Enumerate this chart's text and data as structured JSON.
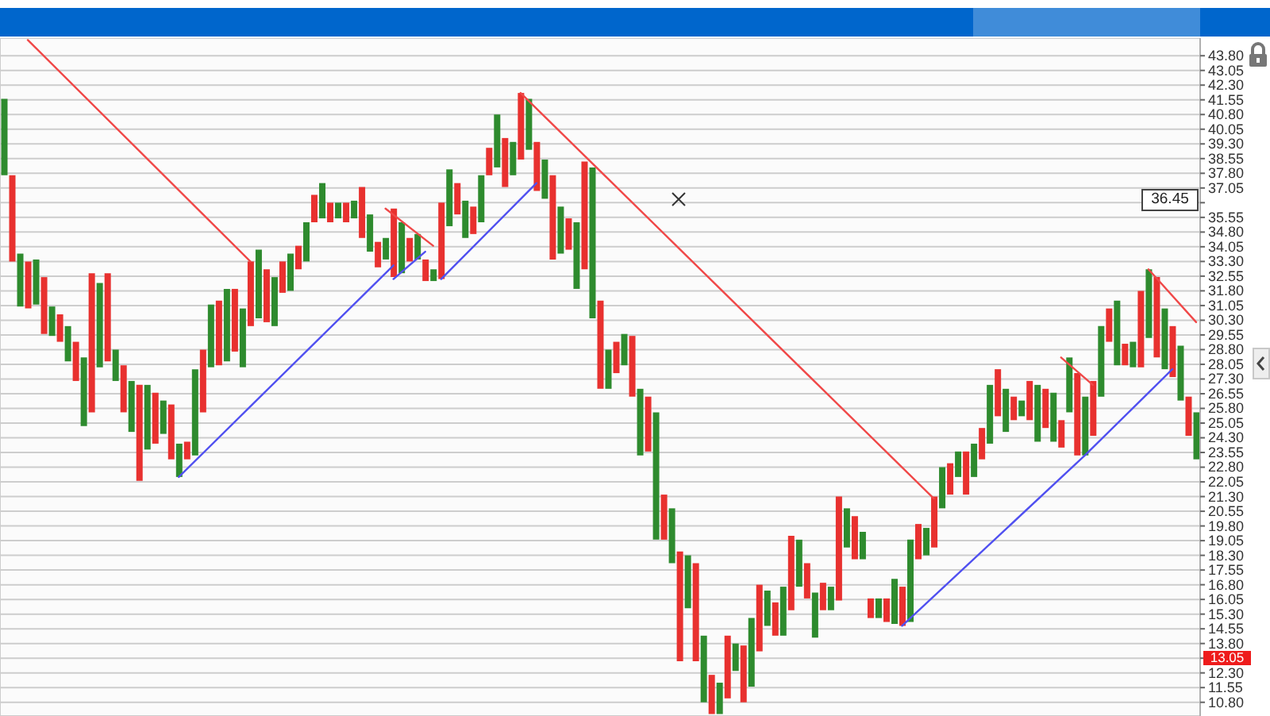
{
  "chart_data": {
    "type": "bar",
    "categories": [
      null,
      null,
      null,
      null,
      null,
      null,
      null,
      null,
      null,
      null,
      null,
      null,
      null,
      null,
      null,
      null,
      null,
      null,
      null,
      null,
      null,
      null,
      null,
      null,
      null,
      null,
      null,
      null,
      null,
      null,
      null,
      null,
      null,
      null,
      null,
      null,
      null,
      null,
      null,
      null,
      null,
      null,
      null,
      null,
      null,
      null,
      null,
      null,
      null,
      null,
      null,
      null,
      null,
      null,
      null,
      null,
      null,
      null,
      null,
      null,
      null,
      null,
      null,
      null,
      null,
      null,
      null,
      null,
      null,
      null,
      null,
      null,
      null,
      null,
      null,
      null,
      null,
      null,
      null,
      null,
      null,
      null,
      null,
      null,
      null,
      null,
      null,
      null,
      null,
      null,
      null,
      null,
      null,
      null,
      null,
      null,
      null,
      null,
      null,
      null,
      null,
      null,
      null,
      null,
      null,
      null,
      null,
      null,
      null,
      null,
      null,
      null,
      null,
      null,
      null,
      null,
      null,
      null,
      null,
      null,
      null,
      null,
      null,
      null,
      null,
      null,
      null,
      null,
      null,
      null,
      null,
      null,
      null,
      null,
      null,
      null,
      null,
      null,
      null,
      null,
      null,
      null,
      null,
      null,
      null,
      null,
      null,
      null,
      null,
      null,
      null
    ],
    "series": [
      {
        "color": "#2e8b2e",
        "base": [
          37.7,
          33.3,
          31.0,
          30.9,
          31.1,
          29.6,
          29.5,
          29.2,
          28.2,
          27.2,
          24.9,
          25.6,
          27.9,
          28.2,
          27.2,
          25.6,
          24.6,
          22.1,
          23.7,
          24.0,
          24.5,
          23.2,
          22.3,
          23.2,
          23.4,
          25.6,
          27.9,
          28.0,
          28.2,
          28.7,
          27.9,
          30.0,
          30.4,
          30.2,
          30.0,
          31.7,
          31.8,
          32.9,
          33.3,
          35.3,
          35.5,
          35.3,
          35.5,
          35.3,
          35.5,
          34.5,
          33.8,
          33.0,
          33.4,
          32.5,
          32.7,
          33.3,
          33.4,
          32.3,
          32.3,
          32.4,
          35.1,
          35.7,
          34.5,
          34.7,
          35.3,
          37.7,
          38.1,
          37.1,
          37.7,
          38.5,
          39.0,
          36.9,
          36.5,
          33.4,
          33.7,
          33.9,
          31.9,
          32.9,
          30.4,
          26.8,
          26.8,
          27.6,
          28.0,
          26.4,
          23.4,
          23.6,
          19.1,
          19.1,
          17.9,
          12.9,
          15.6,
          12.9,
          10.8,
          10.2,
          10.2,
          11.0,
          12.4,
          10.8,
          11.6,
          13.4,
          14.7,
          14.2,
          14.2,
          15.5,
          16.7,
          16.1,
          14.1,
          15.5,
          15.5,
          16.0,
          18.7,
          18.1,
          18.1,
          15.1,
          15.1,
          14.9,
          14.8,
          14.7,
          14.9,
          18.1,
          18.3,
          18.7,
          20.7,
          21.4,
          22.3,
          21.4,
          22.3,
          23.2,
          24.0,
          25.4,
          24.6,
          25.2,
          25.4,
          25.2,
          24.1,
          24.8,
          24.1,
          23.8,
          25.6,
          23.4,
          23.4,
          24.4,
          26.4,
          29.2,
          28.0,
          28.0,
          27.9,
          27.9,
          29.4,
          28.4,
          27.8,
          27.4,
          26.2,
          24.4,
          23.2
        ],
        "values": [
          3.9,
          4.4,
          2.7,
          2.4,
          2.3,
          2.9,
          1.5,
          1.4,
          1.8,
          2.0,
          3.5,
          7.1,
          4.3,
          4.5,
          1.6,
          2.4,
          2.6,
          4.9,
          3.3,
          2.6,
          1.7,
          2.8,
          1.7,
          0.9,
          4.4,
          3.2,
          3.2,
          3.3,
          3.7,
          3.2,
          3.0,
          3.3,
          3.5,
          2.7,
          2.5,
          1.6,
          1.9,
          1.2,
          2.0,
          1.4,
          1.8,
          1.0,
          0.8,
          1.0,
          0.9,
          2.6,
          1.9,
          1.3,
          1.1,
          3.5,
          2.6,
          1.2,
          1.3,
          1.1,
          0.6,
          3.9,
          2.9,
          1.6,
          1.9,
          1.4,
          2.4,
          1.4,
          2.7,
          2.5,
          1.7,
          3.4,
          2.6,
          2.5,
          2.0,
          4.3,
          2.4,
          1.6,
          3.4,
          5.5,
          7.7,
          4.5,
          2.0,
          1.6,
          1.6,
          3.1,
          3.4,
          2.8,
          6.5,
          2.3,
          2.8,
          5.6,
          2.7,
          5.0,
          3.4,
          2.0,
          1.6,
          3.2,
          1.4,
          2.9,
          3.5,
          3.4,
          1.8,
          1.7,
          2.5,
          3.8,
          2.4,
          1.8,
          2.3,
          1.4,
          1.2,
          5.3,
          2.0,
          2.2,
          1.4,
          1.0,
          1.0,
          1.2,
          2.3,
          2.0,
          4.2,
          1.8,
          1.4,
          2.6,
          2.1,
          1.6,
          1.3,
          2.2,
          1.7,
          1.6,
          3.0,
          2.4,
          2.2,
          1.2,
          0.8,
          2.0,
          2.9,
          2.0,
          2.5,
          1.4,
          2.8,
          4.2,
          3.0,
          2.8,
          3.6,
          1.7,
          3.3,
          1.1,
          1.3,
          3.9,
          3.5,
          4.1,
          3.1,
          2.6,
          2.8,
          2.0,
          2.4
        ],
        "colors": [
          "#2e8b2e",
          "#e8312f",
          "#2e8b2e",
          "#e8312f",
          "#2e8b2e",
          "#e8312f",
          "#2e8b2e",
          "#e8312f",
          "#2e8b2e",
          "#e8312f",
          "#2e8b2e",
          "#e8312f",
          "#2e8b2e",
          "#e8312f",
          "#2e8b2e",
          "#e8312f",
          "#2e8b2e",
          "#e8312f",
          "#2e8b2e",
          "#e8312f",
          "#2e8b2e",
          "#e8312f",
          "#2e8b2e",
          "#e8312f",
          "#2e8b2e",
          "#e8312f",
          "#2e8b2e",
          "#e8312f",
          "#2e8b2e",
          "#e8312f",
          "#2e8b2e",
          "#e8312f",
          "#2e8b2e",
          "#e8312f",
          "#2e8b2e",
          "#e8312f",
          "#2e8b2e",
          "#e8312f",
          "#2e8b2e",
          "#e8312f",
          "#2e8b2e",
          "#e8312f",
          "#2e8b2e",
          "#e8312f",
          "#2e8b2e",
          "#e8312f",
          "#2e8b2e",
          "#e8312f",
          "#2e8b2e",
          "#e8312f",
          "#2e8b2e",
          "#e8312f",
          "#2e8b2e",
          "#e8312f",
          "#2e8b2e",
          "#e8312f",
          "#2e8b2e",
          "#e8312f",
          "#2e8b2e",
          "#e8312f",
          "#2e8b2e",
          "#e8312f",
          "#2e8b2e",
          "#e8312f",
          "#2e8b2e",
          "#e8312f",
          "#2e8b2e",
          "#e8312f",
          "#2e8b2e",
          "#e8312f",
          "#2e8b2e",
          "#e8312f",
          "#2e8b2e",
          "#e8312f",
          "#2e8b2e",
          "#e8312f",
          "#2e8b2e",
          "#e8312f",
          "#2e8b2e",
          "#e8312f",
          "#2e8b2e",
          "#e8312f",
          "#2e8b2e",
          "#e8312f",
          "#2e8b2e",
          "#e8312f",
          "#2e8b2e",
          "#e8312f",
          "#2e8b2e",
          "#e8312f",
          "#2e8b2e",
          "#e8312f",
          "#2e8b2e",
          "#e8312f",
          "#2e8b2e",
          "#e8312f",
          "#2e8b2e",
          "#e8312f",
          "#2e8b2e",
          "#e8312f",
          "#2e8b2e",
          "#e8312f",
          "#2e8b2e",
          "#e8312f",
          "#2e8b2e",
          "#e8312f",
          "#2e8b2e",
          "#e8312f",
          "#2e8b2e",
          "#e8312f",
          "#2e8b2e",
          "#e8312f",
          "#2e8b2e",
          "#e8312f",
          "#2e8b2e",
          "#e8312f",
          "#2e8b2e",
          "#e8312f",
          "#2e8b2e",
          "#e8312f",
          "#2e8b2e",
          "#e8312f",
          "#2e8b2e",
          "#e8312f",
          "#2e8b2e",
          "#e8312f",
          "#2e8b2e",
          "#e8312f",
          "#2e8b2e",
          "#e8312f",
          "#2e8b2e",
          "#e8312f",
          "#2e8b2e",
          "#e8312f",
          "#2e8b2e",
          "#e8312f",
          "#2e8b2e",
          "#e8312f",
          "#2e8b2e",
          "#e8312f",
          "#2e8b2e",
          "#e8312f",
          "#2e8b2e",
          "#e8312f",
          "#2e8b2e",
          "#e8312f",
          "#2e8b2e",
          "#e8312f",
          "#2e8b2e",
          "#e8312f",
          "#2e8b2e"
        ]
      },
      {
        "type": "line",
        "color": "#f04848",
        "values": [
          null,
          null,
          null,
          44.6,
          null,
          null,
          null,
          null,
          null,
          null,
          null,
          null,
          null,
          null,
          null,
          null,
          null,
          null,
          null,
          null,
          null,
          null,
          null,
          null,
          null,
          null,
          null,
          null,
          null,
          null,
          null,
          33.3,
          null,
          null,
          null,
          null,
          null,
          null,
          null,
          null,
          null,
          null,
          null,
          null,
          null,
          null,
          null,
          null,
          null,
          null,
          null,
          null,
          null,
          null,
          null,
          null,
          null,
          null,
          null,
          null,
          null,
          null,
          null,
          null,
          null,
          null,
          null,
          null,
          null,
          null,
          null,
          null,
          null,
          null,
          null,
          null,
          null,
          null,
          null,
          null,
          null,
          null,
          null,
          null,
          null,
          null,
          null,
          null,
          null,
          null,
          null,
          null,
          null,
          null,
          null,
          null,
          null,
          null,
          null,
          null,
          null,
          null,
          null,
          null,
          null,
          null,
          null,
          null,
          null,
          null,
          null,
          null,
          null,
          null,
          null,
          null,
          null,
          null,
          null,
          null,
          null,
          null,
          null,
          null,
          null,
          null,
          null,
          null,
          null,
          null,
          null,
          null,
          null,
          null,
          null,
          null,
          null,
          null,
          null,
          null,
          null,
          null,
          null,
          null,
          null,
          null,
          null,
          null,
          null,
          null,
          null
        ]
      },
      {
        "type": "line",
        "color": "#5050f0",
        "values": [
          null,
          null,
          null,
          null,
          null,
          null,
          null,
          null,
          null,
          null,
          null,
          null,
          null,
          null,
          null,
          null,
          null,
          null,
          null,
          null,
          null,
          null,
          22.3,
          null,
          null,
          null,
          null,
          null,
          null,
          null,
          null,
          null,
          null,
          null,
          null,
          null,
          null,
          null,
          null,
          null,
          null,
          null,
          null,
          null,
          null,
          null,
          null,
          null,
          null,
          33.1,
          null,
          null,
          null,
          null,
          null,
          null,
          null,
          null,
          null,
          null,
          null,
          null,
          null,
          null,
          null,
          null,
          null,
          null,
          null,
          null,
          null,
          null,
          null,
          null,
          null,
          null,
          null,
          null,
          null,
          null,
          null,
          null,
          null,
          null,
          null,
          null,
          null,
          null,
          null,
          null,
          null,
          null,
          null,
          null,
          null,
          null,
          null,
          null,
          null,
          null,
          null,
          null,
          null,
          null,
          null,
          null,
          null,
          null,
          null,
          null,
          null,
          null,
          null,
          null,
          null,
          null,
          null,
          null,
          null,
          null,
          null,
          null,
          null,
          null,
          null,
          null,
          null,
          null,
          null,
          null,
          null,
          null,
          null,
          null,
          null,
          null,
          null,
          null,
          null,
          null,
          null,
          null,
          null,
          null,
          null,
          null,
          null,
          null,
          null,
          null,
          null
        ]
      },
      {
        "type": "line",
        "color": "#f04848",
        "values": [
          null,
          null,
          null,
          null,
          null,
          null,
          null,
          null,
          null,
          null,
          null,
          null,
          null,
          null,
          null,
          null,
          null,
          null,
          null,
          null,
          null,
          null,
          null,
          null,
          null,
          null,
          null,
          null,
          null,
          null,
          null,
          null,
          null,
          null,
          null,
          null,
          null,
          null,
          null,
          null,
          null,
          null,
          null,
          null,
          null,
          null,
          null,
          null,
          36.0,
          null,
          null,
          null,
          null,
          null,
          34.1,
          null,
          null,
          null,
          null,
          null,
          null,
          null,
          null,
          null,
          null,
          null,
          null,
          null,
          null,
          null,
          null,
          null,
          null,
          null,
          null,
          null,
          null,
          null,
          null,
          null,
          null,
          null,
          null,
          null,
          null,
          null,
          null,
          null,
          null,
          null,
          null,
          null,
          null,
          null,
          null,
          null,
          null,
          null,
          null,
          null,
          null,
          null,
          null,
          null,
          null,
          null,
          null,
          null,
          null,
          null,
          null,
          null,
          null,
          null,
          null,
          null,
          null,
          null,
          null,
          null,
          null,
          null,
          null,
          null,
          null,
          null,
          null,
          null,
          null,
          null,
          null,
          null,
          null,
          null,
          null,
          null,
          null,
          null,
          null,
          null,
          null,
          null,
          null,
          null,
          null,
          null,
          null,
          null,
          null,
          null,
          null
        ]
      },
      {
        "type": "line",
        "color": "#5050f0",
        "values": [
          null,
          null,
          null,
          null,
          null,
          null,
          null,
          null,
          null,
          null,
          null,
          null,
          null,
          null,
          null,
          null,
          null,
          null,
          null,
          null,
          null,
          null,
          null,
          null,
          null,
          null,
          null,
          null,
          null,
          null,
          null,
          null,
          null,
          null,
          null,
          null,
          null,
          null,
          null,
          null,
          null,
          null,
          null,
          null,
          null,
          null,
          null,
          null,
          null,
          32.4,
          null,
          null,
          null,
          33.8,
          null,
          null,
          null,
          null,
          null,
          null,
          null,
          null,
          null,
          null,
          null,
          null,
          null,
          null,
          null,
          null,
          null,
          null,
          null,
          null,
          null,
          null,
          null,
          null,
          null,
          null,
          null,
          null,
          null,
          null,
          null,
          null,
          null,
          null,
          null,
          null,
          null,
          null,
          null,
          null,
          null,
          null,
          null,
          null,
          null,
          null,
          null,
          null,
          null,
          null,
          null,
          null,
          null,
          null,
          null,
          null,
          null,
          null,
          null,
          null,
          null,
          null,
          null,
          null,
          null,
          null,
          null,
          null,
          null,
          null,
          null,
          null,
          null,
          null,
          null,
          null,
          null,
          null,
          null,
          null,
          null,
          null,
          null,
          null,
          null,
          null,
          null,
          null,
          null,
          null,
          null,
          null,
          null,
          null,
          null,
          null,
          null
        ]
      },
      {
        "type": "line",
        "color": "#5050f0",
        "values": [
          null,
          null,
          null,
          null,
          null,
          null,
          null,
          null,
          null,
          null,
          null,
          null,
          null,
          null,
          null,
          null,
          null,
          null,
          null,
          null,
          null,
          null,
          null,
          null,
          null,
          null,
          null,
          null,
          null,
          null,
          null,
          null,
          null,
          null,
          null,
          null,
          null,
          null,
          null,
          null,
          null,
          null,
          null,
          null,
          null,
          null,
          null,
          null,
          null,
          null,
          null,
          null,
          null,
          null,
          null,
          32.4,
          null,
          null,
          null,
          null,
          null,
          null,
          null,
          null,
          null,
          null,
          null,
          37.3,
          null,
          null,
          null,
          null,
          null,
          null,
          null,
          null,
          null,
          null,
          null,
          null,
          null,
          null,
          null,
          null,
          null,
          null,
          null,
          null,
          null,
          null,
          null,
          null,
          null,
          null,
          null,
          null,
          null,
          null,
          null,
          null,
          null,
          null,
          null,
          null,
          null,
          null,
          null,
          null,
          null,
          null,
          null,
          null,
          null,
          null,
          null,
          null,
          null,
          null,
          null,
          null,
          null,
          null,
          null,
          null,
          null,
          null,
          null,
          null,
          null,
          null,
          null,
          null,
          null,
          null,
          null,
          null,
          null,
          null,
          null,
          null,
          null,
          null,
          null,
          null,
          null,
          null,
          null,
          null,
          null,
          null,
          null
        ]
      },
      {
        "type": "line",
        "color": "#f04848",
        "values": [
          null,
          null,
          null,
          null,
          null,
          null,
          null,
          null,
          null,
          null,
          null,
          null,
          null,
          null,
          null,
          null,
          null,
          null,
          null,
          null,
          null,
          null,
          null,
          null,
          null,
          null,
          null,
          null,
          null,
          null,
          null,
          null,
          null,
          null,
          null,
          null,
          null,
          null,
          null,
          null,
          null,
          null,
          null,
          null,
          null,
          null,
          null,
          null,
          null,
          null,
          null,
          null,
          null,
          null,
          null,
          null,
          null,
          null,
          null,
          null,
          null,
          null,
          null,
          null,
          null,
          41.9,
          null,
          null,
          null,
          null,
          null,
          null,
          null,
          null,
          null,
          null,
          null,
          null,
          null,
          null,
          null,
          null,
          null,
          null,
          null,
          null,
          null,
          null,
          null,
          null,
          null,
          null,
          null,
          null,
          null,
          null,
          null,
          null,
          null,
          null,
          null,
          null,
          null,
          null,
          null,
          null,
          null,
          null,
          null,
          null,
          null,
          null,
          null,
          null,
          null,
          null,
          null,
          21.2,
          null,
          null,
          null,
          null,
          null,
          null,
          null,
          null,
          null,
          null,
          null,
          null,
          null,
          null,
          null,
          null,
          null,
          null,
          null,
          null,
          null,
          null,
          null,
          null,
          null,
          null,
          null,
          null,
          null,
          null,
          null,
          null,
          null
        ]
      },
      {
        "type": "line",
        "color": "#5050f0",
        "values": [
          null,
          null,
          null,
          null,
          null,
          null,
          null,
          null,
          null,
          null,
          null,
          null,
          null,
          null,
          null,
          null,
          null,
          null,
          null,
          null,
          null,
          null,
          null,
          null,
          null,
          null,
          null,
          null,
          null,
          null,
          null,
          null,
          null,
          null,
          null,
          null,
          null,
          null,
          null,
          null,
          null,
          null,
          null,
          null,
          null,
          null,
          null,
          null,
          null,
          null,
          null,
          null,
          null,
          null,
          null,
          null,
          null,
          null,
          null,
          null,
          null,
          null,
          null,
          null,
          null,
          null,
          null,
          null,
          null,
          null,
          null,
          null,
          null,
          null,
          null,
          null,
          null,
          null,
          null,
          null,
          null,
          null,
          null,
          null,
          null,
          null,
          null,
          null,
          null,
          null,
          null,
          null,
          null,
          null,
          null,
          null,
          null,
          null,
          null,
          null,
          null,
          null,
          null,
          null,
          null,
          null,
          null,
          null,
          null,
          null,
          null,
          null,
          null,
          14.7,
          null,
          null,
          null,
          null,
          null,
          null,
          null,
          null,
          null,
          null,
          null,
          null,
          null,
          null,
          null,
          null,
          null,
          null,
          null,
          null,
          null,
          null,
          23.4,
          null,
          null,
          null,
          null,
          null,
          null,
          null,
          null,
          null,
          null,
          27.8,
          null,
          null,
          null
        ]
      },
      {
        "type": "line",
        "color": "#f04848",
        "values": [
          null,
          null,
          null,
          null,
          null,
          null,
          null,
          null,
          null,
          null,
          null,
          null,
          null,
          null,
          null,
          null,
          null,
          null,
          null,
          null,
          null,
          null,
          null,
          null,
          null,
          null,
          null,
          null,
          null,
          null,
          null,
          null,
          null,
          null,
          null,
          null,
          null,
          null,
          null,
          null,
          null,
          null,
          null,
          null,
          null,
          null,
          null,
          null,
          null,
          null,
          null,
          null,
          null,
          null,
          null,
          null,
          null,
          null,
          null,
          null,
          null,
          null,
          null,
          null,
          null,
          null,
          null,
          null,
          null,
          null,
          null,
          null,
          null,
          null,
          null,
          null,
          null,
          null,
          null,
          null,
          null,
          null,
          null,
          null,
          null,
          null,
          null,
          null,
          null,
          null,
          null,
          null,
          null,
          null,
          null,
          null,
          null,
          null,
          null,
          null,
          null,
          null,
          null,
          null,
          null,
          null,
          null,
          null,
          null,
          null,
          null,
          null,
          null,
          null,
          null,
          null,
          null,
          null,
          null,
          null,
          null,
          null,
          null,
          null,
          null,
          null,
          null,
          null,
          null,
          null,
          null,
          null,
          null,
          28.4,
          null,
          null,
          null,
          27.0,
          null,
          null,
          null,
          null,
          null,
          null,
          null,
          null,
          null,
          null,
          null,
          null,
          null
        ]
      },
      {
        "type": "line",
        "color": "#f04848",
        "values": [
          null,
          null,
          null,
          null,
          null,
          null,
          null,
          null,
          null,
          null,
          null,
          null,
          null,
          null,
          null,
          null,
          null,
          null,
          null,
          null,
          null,
          null,
          null,
          null,
          null,
          null,
          null,
          null,
          null,
          null,
          null,
          null,
          null,
          null,
          null,
          null,
          null,
          null,
          null,
          null,
          null,
          null,
          null,
          null,
          null,
          null,
          null,
          null,
          null,
          null,
          null,
          null,
          null,
          null,
          null,
          null,
          null,
          null,
          null,
          null,
          null,
          null,
          null,
          null,
          null,
          null,
          null,
          null,
          null,
          null,
          null,
          null,
          null,
          null,
          null,
          null,
          null,
          null,
          null,
          null,
          null,
          null,
          null,
          null,
          null,
          null,
          null,
          null,
          null,
          null,
          null,
          null,
          null,
          null,
          null,
          null,
          null,
          null,
          null,
          null,
          null,
          null,
          null,
          null,
          null,
          null,
          null,
          null,
          null,
          null,
          null,
          null,
          null,
          null,
          null,
          null,
          null,
          null,
          null,
          null,
          null,
          null,
          null,
          null,
          null,
          null,
          null,
          null,
          null,
          null,
          null,
          null,
          null,
          null,
          null,
          null,
          null,
          null,
          null,
          null,
          null,
          null,
          null,
          null,
          32.9,
          null,
          null,
          null,
          null,
          null,
          30.2
        ]
      }
    ],
    "ylim": [
      10.1,
      44.7
    ],
    "yticks": [
      {
        "value": 10.8,
        "label": "10.80"
      },
      {
        "value": 11.55,
        "label": "11.55"
      },
      {
        "value": 12.3,
        "label": "12.30"
      },
      {
        "value": 13.05,
        "label": null
      },
      {
        "value": 13.8,
        "label": "13.80"
      },
      {
        "value": 14.55,
        "label": "14.55"
      },
      {
        "value": 15.3,
        "label": "15.30"
      },
      {
        "value": 16.05,
        "label": "16.05"
      },
      {
        "value": 16.8,
        "label": "16.80"
      },
      {
        "value": 17.55,
        "label": "17.55"
      },
      {
        "value": 18.3,
        "label": "18.30"
      },
      {
        "value": 19.05,
        "label": "19.05"
      },
      {
        "value": 19.8,
        "label": "19.80"
      },
      {
        "value": 20.55,
        "label": "20.55"
      },
      {
        "value": 21.3,
        "label": "21.30"
      },
      {
        "value": 22.05,
        "label": "22.05"
      },
      {
        "value": 22.8,
        "label": "22.80"
      },
      {
        "value": 23.55,
        "label": "23.55"
      },
      {
        "value": 24.3,
        "label": "24.30"
      },
      {
        "value": 25.05,
        "label": "25.05"
      },
      {
        "value": 25.8,
        "label": "25.80"
      },
      {
        "value": 26.55,
        "label": "26.55"
      },
      {
        "value": 27.3,
        "label": "27.30"
      },
      {
        "value": 28.05,
        "label": "28.05"
      },
      {
        "value": 28.8,
        "label": "28.80"
      },
      {
        "value": 29.55,
        "label": "29.55"
      },
      {
        "value": 30.3,
        "label": "30.30"
      },
      {
        "value": 31.05,
        "label": "31.05"
      },
      {
        "value": 31.8,
        "label": "31.80"
      },
      {
        "value": 32.55,
        "label": "32.55"
      },
      {
        "value": 33.3,
        "label": "33.30"
      },
      {
        "value": 34.05,
        "label": "34.05"
      },
      {
        "value": 34.8,
        "label": "34.80"
      },
      {
        "value": 35.55,
        "label": "35.55"
      },
      {
        "value": 36.3,
        "label": null
      },
      {
        "value": 37.05,
        "label": "37.05"
      },
      {
        "value": 37.8,
        "label": "37.80"
      },
      {
        "value": 38.55,
        "label": "38.55"
      },
      {
        "value": 39.3,
        "label": "39.30"
      },
      {
        "value": 40.05,
        "label": "40.05"
      },
      {
        "value": 40.8,
        "label": "40.80"
      },
      {
        "value": 41.55,
        "label": "41.55"
      },
      {
        "value": 42.3,
        "label": "42.30"
      },
      {
        "value": 43.05,
        "label": "43.05"
      },
      {
        "value": 43.8,
        "label": "43.80"
      }
    ],
    "grid": true,
    "tick_labels": "y",
    "annotations": [
      {
        "text": "36.45",
        "y": 36.45
      },
      {
        "text": "13.05",
        "y": 13.05
      }
    ]
  }
}
